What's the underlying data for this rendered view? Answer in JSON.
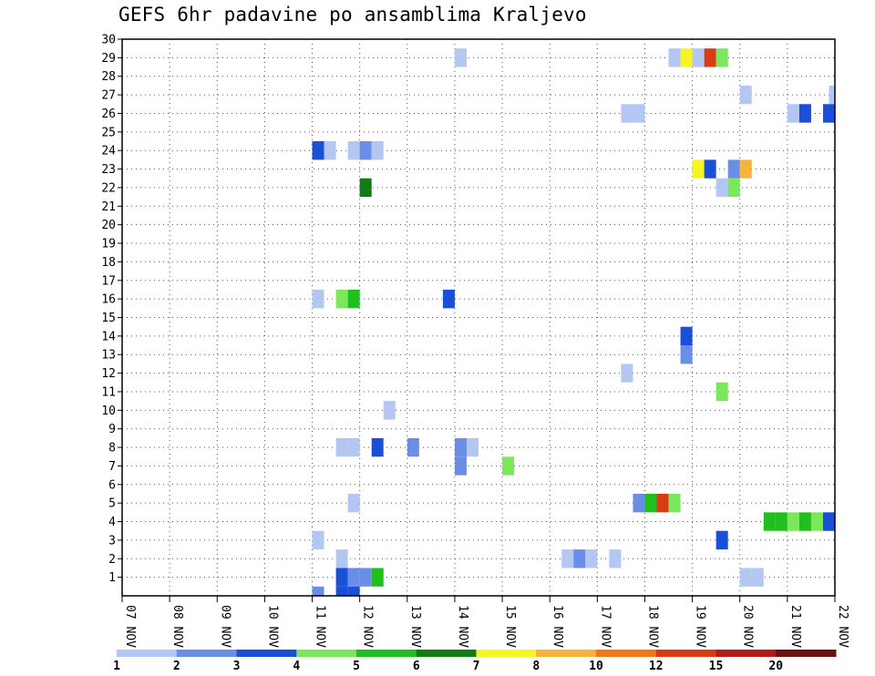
{
  "chart_data": {
    "type": "heatmap",
    "title": "GEFS 6hr padavine po ansamblima Kraljevo",
    "xlabel": "",
    "ylabel": "",
    "x_unit": "day_index_0_is_07_NOV",
    "xlim": [
      0,
      15
    ],
    "ylim": [
      0,
      30
    ],
    "xtick_labels": [
      "07 NOV",
      "08 NOV",
      "09 NOV",
      "10 NOV",
      "11 NOV",
      "12 NOV",
      "13 NOV",
      "14 NOV",
      "15 NOV",
      "16 NOV",
      "17 NOV",
      "18 NOV",
      "19 NOV",
      "20 NOV",
      "21 NOV",
      "22 NOV"
    ],
    "ytick_labels": [
      "1",
      "2",
      "3",
      "4",
      "5",
      "6",
      "7",
      "8",
      "9",
      "10",
      "11",
      "12",
      "13",
      "14",
      "15",
      "16",
      "17",
      "18",
      "19",
      "20",
      "21",
      "22",
      "23",
      "24",
      "25",
      "26",
      "27",
      "28",
      "29",
      "30"
    ],
    "colorbar": {
      "colors": [
        "#b3c7f2",
        "#6a8ee8",
        "#1a4fd8",
        "#7ae85a",
        "#1fbf1f",
        "#147a14",
        "#f5f51f",
        "#f5b23c",
        "#f07818",
        "#d83c14",
        "#b01c1c",
        "#6e0f0f"
      ],
      "labels": [
        "1",
        "2",
        "3",
        "4",
        "5",
        "6",
        "7",
        "8",
        "10",
        "12",
        "15",
        "20"
      ]
    },
    "cells": [
      {
        "x": 7.125,
        "y": 29,
        "v": 1
      },
      {
        "x": 11.625,
        "y": 29,
        "v": 1
      },
      {
        "x": 11.875,
        "y": 29,
        "v": 7
      },
      {
        "x": 12.125,
        "y": 29,
        "v": 1
      },
      {
        "x": 12.375,
        "y": 29,
        "v": 10
      },
      {
        "x": 12.625,
        "y": 29,
        "v": 4
      },
      {
        "x": 13.125,
        "y": 27,
        "v": 1
      },
      {
        "x": 15.0,
        "y": 27,
        "v": 1
      },
      {
        "x": 10.625,
        "y": 26,
        "v": 1
      },
      {
        "x": 10.875,
        "y": 26,
        "v": 1
      },
      {
        "x": 14.125,
        "y": 26,
        "v": 1
      },
      {
        "x": 14.375,
        "y": 26,
        "v": 3
      },
      {
        "x": 14.875,
        "y": 26,
        "v": 3
      },
      {
        "x": 4.125,
        "y": 24,
        "v": 3
      },
      {
        "x": 4.375,
        "y": 24,
        "v": 1
      },
      {
        "x": 4.875,
        "y": 24,
        "v": 1
      },
      {
        "x": 5.125,
        "y": 24,
        "v": 2
      },
      {
        "x": 5.375,
        "y": 24,
        "v": 1
      },
      {
        "x": 12.125,
        "y": 23,
        "v": 7
      },
      {
        "x": 12.375,
        "y": 23,
        "v": 3
      },
      {
        "x": 12.875,
        "y": 23,
        "v": 2
      },
      {
        "x": 13.125,
        "y": 23,
        "v": 8
      },
      {
        "x": 5.125,
        "y": 22,
        "v": 6
      },
      {
        "x": 12.625,
        "y": 22,
        "v": 1
      },
      {
        "x": 12.875,
        "y": 22,
        "v": 4
      },
      {
        "x": 4.125,
        "y": 16,
        "v": 1
      },
      {
        "x": 4.625,
        "y": 16,
        "v": 4
      },
      {
        "x": 4.875,
        "y": 16,
        "v": 5
      },
      {
        "x": 6.875,
        "y": 16,
        "v": 3
      },
      {
        "x": 11.875,
        "y": 14,
        "v": 3
      },
      {
        "x": 11.875,
        "y": 13,
        "v": 2
      },
      {
        "x": 10.625,
        "y": 12,
        "v": 1
      },
      {
        "x": 12.625,
        "y": 11,
        "v": 4
      },
      {
        "x": 5.625,
        "y": 10,
        "v": 1
      },
      {
        "x": 4.625,
        "y": 8,
        "v": 1
      },
      {
        "x": 4.875,
        "y": 8,
        "v": 1
      },
      {
        "x": 5.375,
        "y": 8,
        "v": 3
      },
      {
        "x": 6.125,
        "y": 8,
        "v": 2
      },
      {
        "x": 7.125,
        "y": 8,
        "v": 2
      },
      {
        "x": 7.375,
        "y": 8,
        "v": 1
      },
      {
        "x": 7.125,
        "y": 7,
        "v": 2
      },
      {
        "x": 8.125,
        "y": 7,
        "v": 4
      },
      {
        "x": 4.875,
        "y": 5,
        "v": 1
      },
      {
        "x": 10.875,
        "y": 5,
        "v": 2
      },
      {
        "x": 11.125,
        "y": 5,
        "v": 5
      },
      {
        "x": 11.375,
        "y": 5,
        "v": 10
      },
      {
        "x": 11.625,
        "y": 5,
        "v": 4
      },
      {
        "x": 13.625,
        "y": 4,
        "v": 5
      },
      {
        "x": 13.875,
        "y": 4,
        "v": 5
      },
      {
        "x": 14.125,
        "y": 4,
        "v": 4
      },
      {
        "x": 14.375,
        "y": 4,
        "v": 5
      },
      {
        "x": 14.625,
        "y": 4,
        "v": 4
      },
      {
        "x": 14.875,
        "y": 4,
        "v": 3
      },
      {
        "x": 4.125,
        "y": 3,
        "v": 1
      },
      {
        "x": 12.625,
        "y": 3,
        "v": 3
      },
      {
        "x": 4.625,
        "y": 2,
        "v": 1
      },
      {
        "x": 9.375,
        "y": 2,
        "v": 1
      },
      {
        "x": 9.625,
        "y": 2,
        "v": 2
      },
      {
        "x": 9.875,
        "y": 2,
        "v": 1
      },
      {
        "x": 10.375,
        "y": 2,
        "v": 1
      },
      {
        "x": 4.625,
        "y": 1,
        "v": 3
      },
      {
        "x": 4.875,
        "y": 1,
        "v": 2
      },
      {
        "x": 5.125,
        "y": 1,
        "v": 2
      },
      {
        "x": 5.375,
        "y": 1,
        "v": 5
      },
      {
        "x": 13.125,
        "y": 1,
        "v": 1
      },
      {
        "x": 13.375,
        "y": 1,
        "v": 1
      },
      {
        "x": 4.125,
        "y": 0,
        "v": 2
      },
      {
        "x": 4.625,
        "y": 0,
        "v": 3
      },
      {
        "x": 4.875,
        "y": 0,
        "v": 3
      }
    ]
  }
}
